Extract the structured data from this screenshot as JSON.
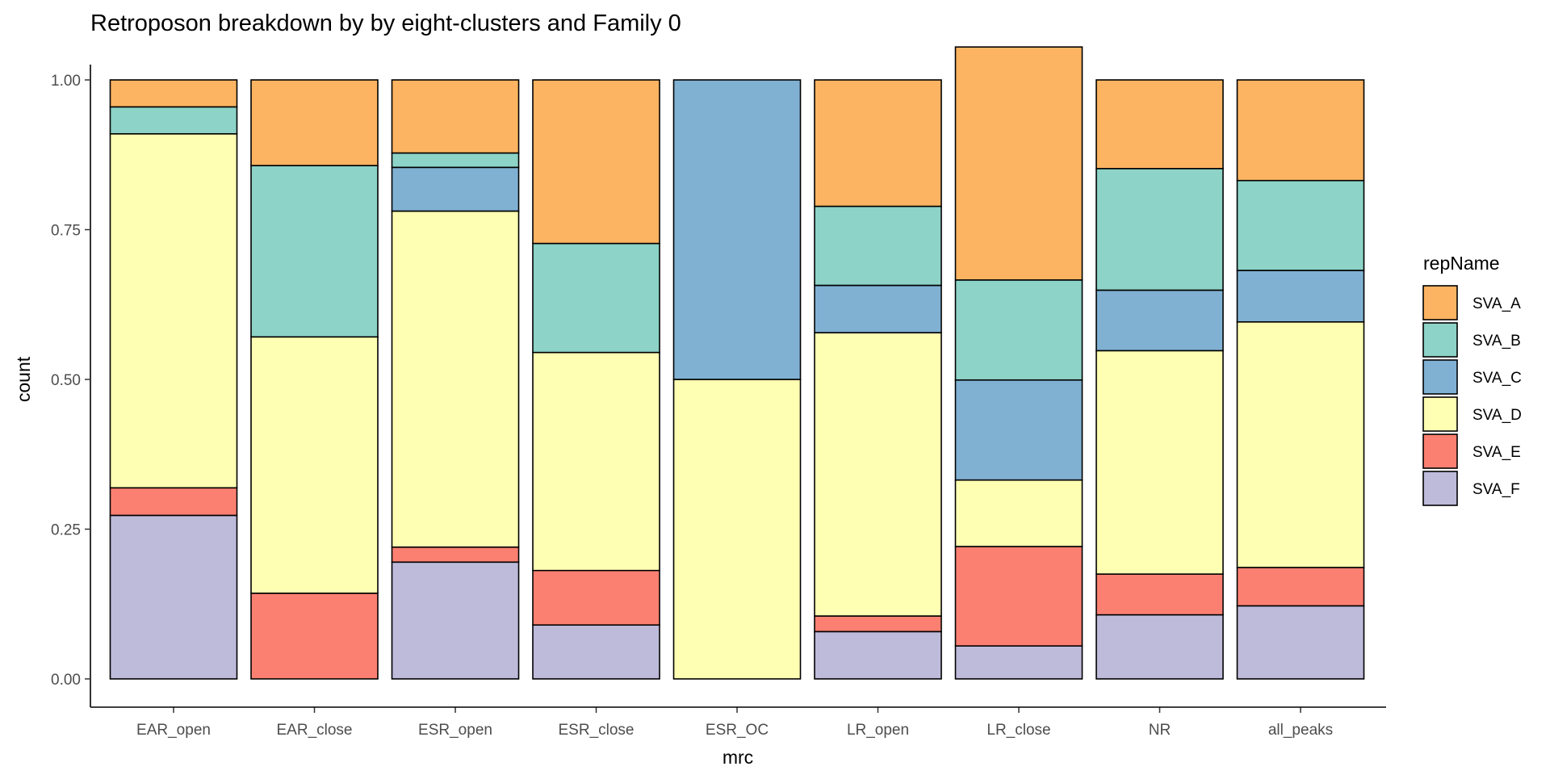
{
  "chart_data": {
    "type": "bar",
    "stacked": "fill",
    "title": "Retroposon breakdown by by eight-clusters and Family 0",
    "xlabel": "mrc",
    "ylabel": "count",
    "ylim": [
      0,
      1
    ],
    "yticks": [
      "0.00",
      "0.25",
      "0.50",
      "0.75",
      "1.00"
    ],
    "ytick_values": [
      0,
      0.25,
      0.5,
      0.75,
      1.0
    ],
    "grid": false,
    "legend_title": "repName",
    "legend_position": "right",
    "categories": [
      "EAR_open",
      "EAR_close",
      "ESR_open",
      "ESR_close",
      "ESR_OC",
      "LR_open",
      "LR_close",
      "NR",
      "all_peaks"
    ],
    "series": [
      {
        "name": "SVA_A",
        "color": "#FDB462",
        "values": [
          0.045,
          0.143,
          0.122,
          0.273,
          0.0,
          0.211,
          0.389,
          0.148,
          0.168
        ]
      },
      {
        "name": "SVA_B",
        "color": "#8DD3C7",
        "values": [
          0.045,
          0.286,
          0.024,
          0.182,
          0.0,
          0.132,
          0.167,
          0.203,
          0.15
        ]
      },
      {
        "name": "SVA_C",
        "color": "#80B1D3",
        "values": [
          0.0,
          0.0,
          0.073,
          0.0,
          0.5,
          0.079,
          0.167,
          0.101,
          0.086
        ]
      },
      {
        "name": "SVA_D",
        "color": "#FFFFB3",
        "values": [
          0.591,
          0.428,
          0.561,
          0.364,
          0.5,
          0.473,
          0.111,
          0.373,
          0.41
        ]
      },
      {
        "name": "SVA_E",
        "color": "#FB8072",
        "values": [
          0.046,
          0.143,
          0.025,
          0.091,
          0.0,
          0.026,
          0.166,
          0.068,
          0.064
        ]
      },
      {
        "name": "SVA_F",
        "color": "#BEBADA",
        "values": [
          0.273,
          0.0,
          0.195,
          0.09,
          0.0,
          0.079,
          0.055,
          0.107,
          0.122
        ]
      }
    ]
  }
}
